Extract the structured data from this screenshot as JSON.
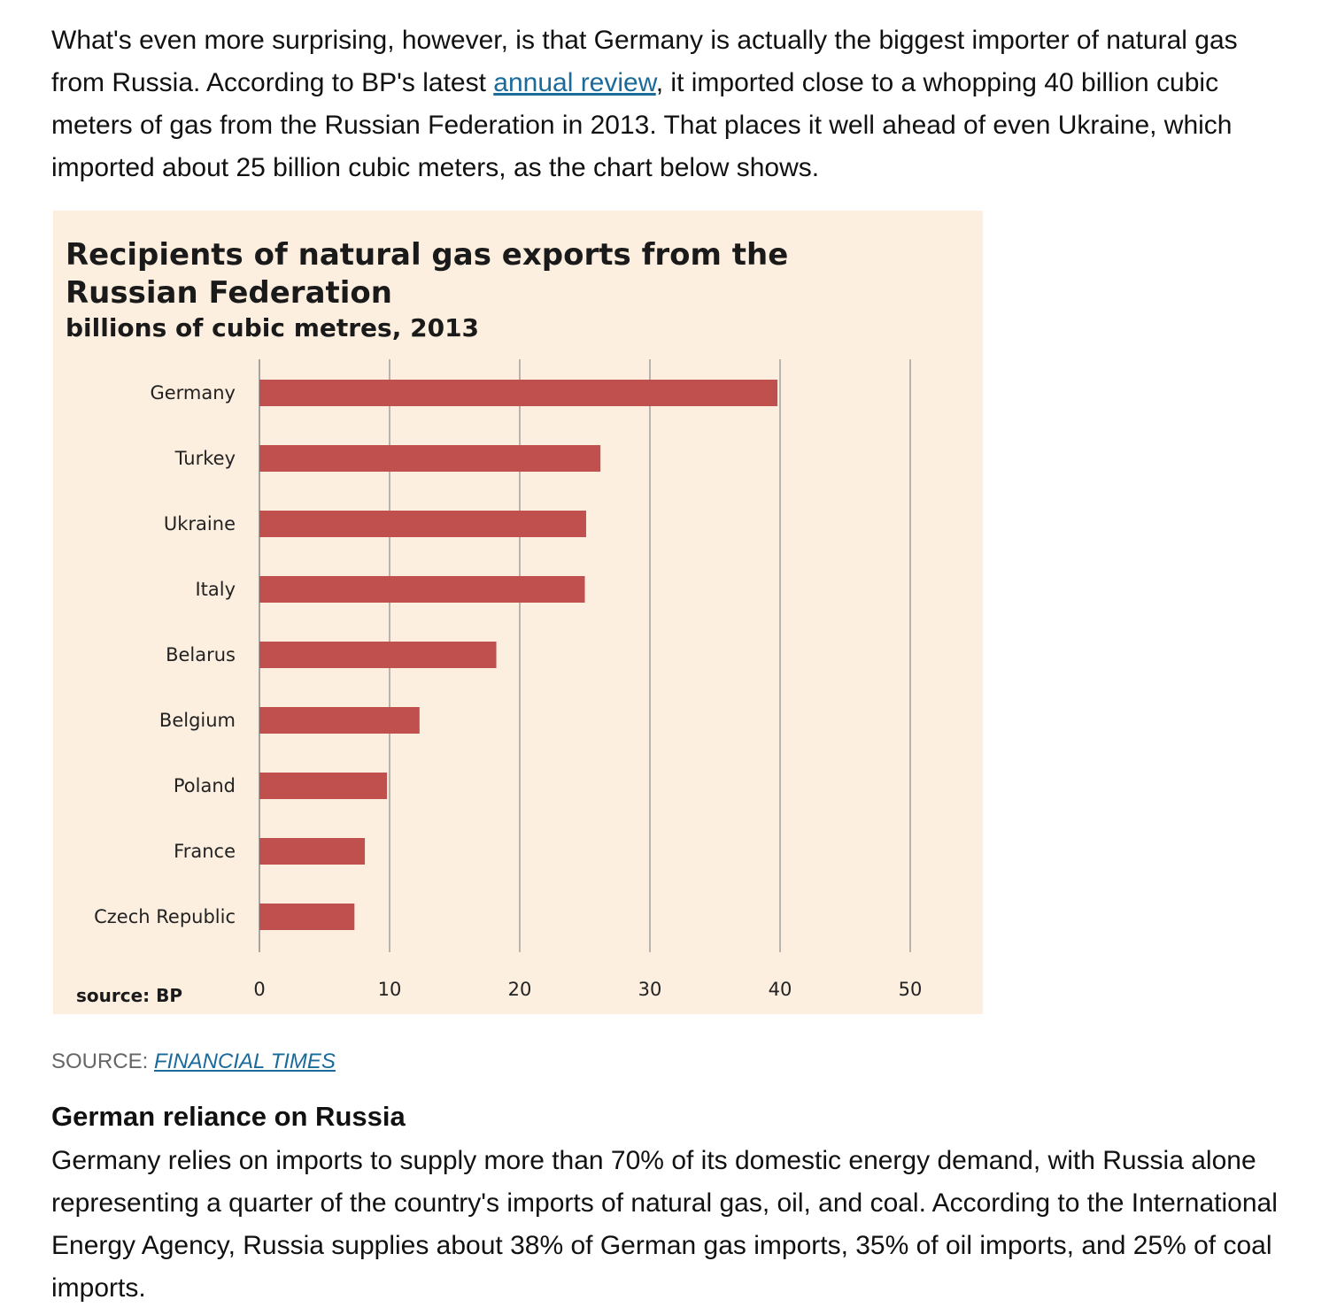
{
  "article": {
    "intro": {
      "before_link": "What's even more surprising, however, is that Germany is actually the biggest importer of natural gas from Russia. According to BP's latest ",
      "link_text": "annual review",
      "after_link": ", it imported close to a whopping 40 billion cubic meters of gas from the Russian Federation in 2013. That places it well ahead of even Ukraine, which imported about 25 billion cubic meters, as the chart below shows."
    },
    "source": {
      "label": "SOURCE: ",
      "link_text": "FINANCIAL TIMES"
    },
    "section_heading": "German reliance on Russia",
    "body": "Germany relies on imports to supply more than 70% of its domestic energy demand, with Russia alone representing a quarter of the country's imports of natural gas, oil, and coal. According to the International Energy Agency, Russia supplies about 38% of German gas imports, 35% of oil imports, and 25% of coal imports."
  },
  "colors": {
    "bar": "#c0504d",
    "background": "#fdefdf",
    "gridline": "#8c8c8c",
    "link": "#1a6a9a"
  },
  "chart_data": {
    "type": "bar",
    "orientation": "horizontal",
    "title_lines": [
      "Recipients of natural gas exports from the",
      "Russian Federation"
    ],
    "subtitle": "billions of cubic metres, 2013",
    "categories": [
      "Germany",
      "Turkey",
      "Ukraine",
      "Italy",
      "Belarus",
      "Belgium",
      "Poland",
      "France",
      "Czech Republic"
    ],
    "values": [
      39.8,
      26.2,
      25.1,
      25.0,
      18.2,
      12.3,
      9.8,
      8.1,
      7.3
    ],
    "xlim": [
      0,
      50
    ],
    "xticks": [
      0,
      10,
      20,
      30,
      40,
      50
    ],
    "grid": true,
    "source_note": "source: BP"
  }
}
